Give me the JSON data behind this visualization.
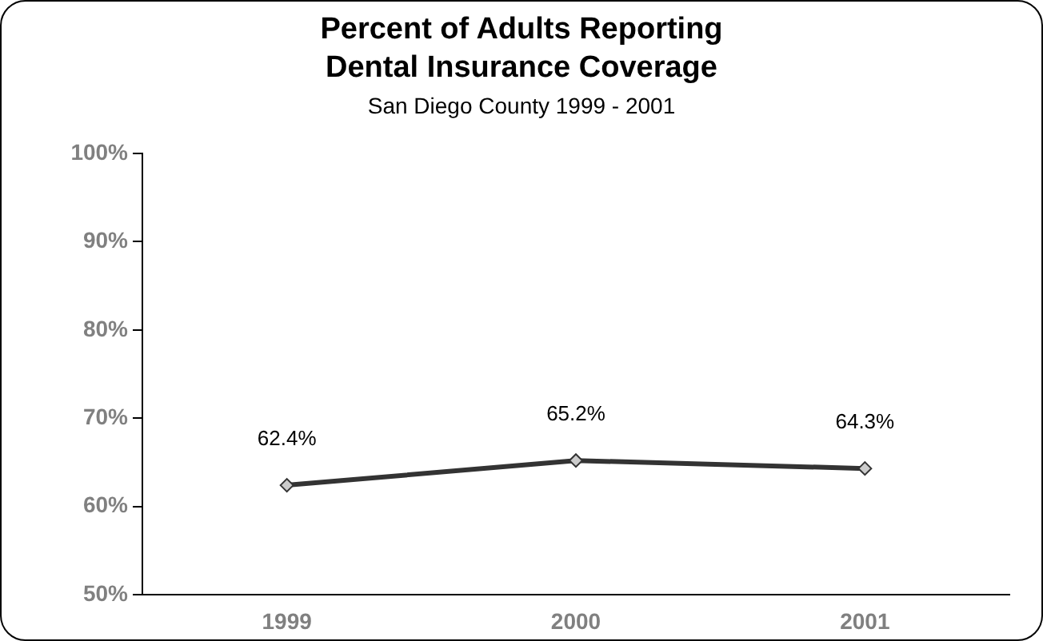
{
  "chart_data": {
    "type": "line",
    "title": "Percent of Adults Reporting Dental Insurance Coverage",
    "subtitle": "San Diego County 1999 - 2001",
    "categories": [
      "1999",
      "2000",
      "2001"
    ],
    "series": [
      {
        "color": "#333333",
        "values": [
          62.4,
          65.2,
          64.3
        ],
        "value_labels": [
          "62.4%",
          "65.2%",
          "64.3%"
        ]
      }
    ],
    "ylim": [
      50,
      100
    ],
    "yticks": [
      {
        "value": 50,
        "label": "50%"
      },
      {
        "value": 60,
        "label": "60%"
      },
      {
        "value": 70,
        "label": "70%"
      },
      {
        "value": 80,
        "label": "80%"
      },
      {
        "value": 90,
        "label": "90%"
      },
      {
        "value": 100,
        "label": "100%"
      }
    ],
    "grid": false,
    "legend": false,
    "marker": "diamond",
    "line_style": "solid"
  }
}
